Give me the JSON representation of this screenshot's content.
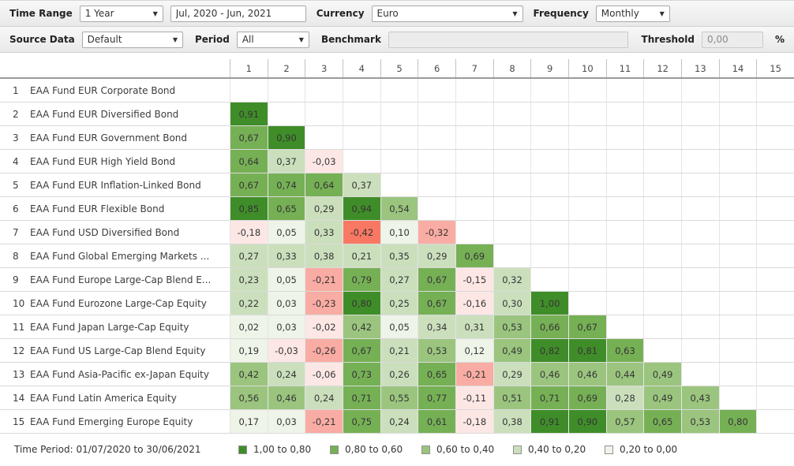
{
  "toolbar1": {
    "time_range_label": "Time Range",
    "time_range_value": "1 Year",
    "date_range_value": "Jul, 2020 - Jun, 2021",
    "currency_label": "Currency",
    "currency_value": "Euro",
    "frequency_label": "Frequency",
    "frequency_value": "Monthly"
  },
  "toolbar2": {
    "source_data_label": "Source Data",
    "source_data_value": "Default",
    "period_label": "Period",
    "period_value": "All",
    "benchmark_label": "Benchmark",
    "benchmark_value": "",
    "threshold_label": "Threshold",
    "threshold_value": "0,00",
    "percent_label": "%"
  },
  "colors": {
    "bands": {
      "d": "#3f8d29",
      "m": "#76b055",
      "ml": "#9bc57e",
      "l": "#cbdfbc",
      "vl": "#eef4e8",
      "vp": "#fce7e5",
      "sp": "#f9aca3",
      "r": "#f87863"
    }
  },
  "matrix": {
    "column_headers": [
      "1",
      "2",
      "3",
      "4",
      "5",
      "6",
      "7",
      "8",
      "9",
      "10",
      "11",
      "12",
      "13",
      "14",
      "15"
    ],
    "rows": [
      {
        "num": "1",
        "name": "EAA Fund EUR Corporate Bond",
        "values": []
      },
      {
        "num": "2",
        "name": "EAA Fund EUR Diversified Bond",
        "values": [
          {
            "v": "0,91",
            "b": "d"
          }
        ]
      },
      {
        "num": "3",
        "name": "EAA Fund EUR Government Bond",
        "values": [
          {
            "v": "0,67",
            "b": "m"
          },
          {
            "v": "0,90",
            "b": "d"
          }
        ]
      },
      {
        "num": "4",
        "name": "EAA Fund EUR High Yield Bond",
        "values": [
          {
            "v": "0,64",
            "b": "m"
          },
          {
            "v": "0,37",
            "b": "l"
          },
          {
            "v": "-0,03",
            "b": "vp"
          }
        ]
      },
      {
        "num": "5",
        "name": "EAA Fund EUR Inflation-Linked Bond",
        "values": [
          {
            "v": "0,67",
            "b": "m"
          },
          {
            "v": "0,74",
            "b": "m"
          },
          {
            "v": "0,64",
            "b": "m"
          },
          {
            "v": "0,37",
            "b": "l"
          }
        ]
      },
      {
        "num": "6",
        "name": "EAA Fund EUR Flexible Bond",
        "values": [
          {
            "v": "0,85",
            "b": "d"
          },
          {
            "v": "0,65",
            "b": "m"
          },
          {
            "v": "0,29",
            "b": "l"
          },
          {
            "v": "0,94",
            "b": "d"
          },
          {
            "v": "0,54",
            "b": "ml"
          }
        ]
      },
      {
        "num": "7",
        "name": "EAA Fund USD Diversified Bond",
        "values": [
          {
            "v": "-0,18",
            "b": "vp"
          },
          {
            "v": "0,05",
            "b": "vl"
          },
          {
            "v": "0,33",
            "b": "l"
          },
          {
            "v": "-0,42",
            "b": "r"
          },
          {
            "v": "0,10",
            "b": "vl"
          },
          {
            "v": "-0,32",
            "b": "sp"
          }
        ]
      },
      {
        "num": "8",
        "name": "EAA Fund Global Emerging Markets ...",
        "values": [
          {
            "v": "0,27",
            "b": "l"
          },
          {
            "v": "0,33",
            "b": "l"
          },
          {
            "v": "0,38",
            "b": "l"
          },
          {
            "v": "0,21",
            "b": "l"
          },
          {
            "v": "0,35",
            "b": "l"
          },
          {
            "v": "0,29",
            "b": "l"
          },
          {
            "v": "0,69",
            "b": "m"
          }
        ]
      },
      {
        "num": "9",
        "name": "EAA Fund Europe Large-Cap Blend E...",
        "values": [
          {
            "v": "0,23",
            "b": "l"
          },
          {
            "v": "0,05",
            "b": "vl"
          },
          {
            "v": "-0,21",
            "b": "sp"
          },
          {
            "v": "0,79",
            "b": "m"
          },
          {
            "v": "0,27",
            "b": "l"
          },
          {
            "v": "0,67",
            "b": "m"
          },
          {
            "v": "-0,15",
            "b": "vp"
          },
          {
            "v": "0,32",
            "b": "l"
          }
        ]
      },
      {
        "num": "10",
        "name": "EAA Fund Eurozone Large-Cap Equity",
        "values": [
          {
            "v": "0,22",
            "b": "l"
          },
          {
            "v": "0,03",
            "b": "vl"
          },
          {
            "v": "-0,23",
            "b": "sp"
          },
          {
            "v": "0,80",
            "b": "d"
          },
          {
            "v": "0,25",
            "b": "l"
          },
          {
            "v": "0,67",
            "b": "m"
          },
          {
            "v": "-0,16",
            "b": "vp"
          },
          {
            "v": "0,30",
            "b": "l"
          },
          {
            "v": "1,00",
            "b": "d"
          }
        ]
      },
      {
        "num": "11",
        "name": "EAA Fund Japan Large-Cap Equity",
        "values": [
          {
            "v": "0,02",
            "b": "vl"
          },
          {
            "v": "0,03",
            "b": "vl"
          },
          {
            "v": "-0,02",
            "b": "vp"
          },
          {
            "v": "0,42",
            "b": "ml"
          },
          {
            "v": "0,05",
            "b": "vl"
          },
          {
            "v": "0,34",
            "b": "l"
          },
          {
            "v": "0,31",
            "b": "l"
          },
          {
            "v": "0,53",
            "b": "ml"
          },
          {
            "v": "0,66",
            "b": "m"
          },
          {
            "v": "0,67",
            "b": "m"
          }
        ]
      },
      {
        "num": "12",
        "name": "EAA Fund US Large-Cap Blend Equity",
        "values": [
          {
            "v": "0,19",
            "b": "vl"
          },
          {
            "v": "-0,03",
            "b": "vp"
          },
          {
            "v": "-0,26",
            "b": "sp"
          },
          {
            "v": "0,67",
            "b": "m"
          },
          {
            "v": "0,21",
            "b": "l"
          },
          {
            "v": "0,53",
            "b": "ml"
          },
          {
            "v": "0,12",
            "b": "vl"
          },
          {
            "v": "0,49",
            "b": "ml"
          },
          {
            "v": "0,82",
            "b": "d"
          },
          {
            "v": "0,81",
            "b": "d"
          },
          {
            "v": "0,63",
            "b": "m"
          }
        ]
      },
      {
        "num": "13",
        "name": "EAA Fund Asia-Pacific ex-Japan Equity",
        "values": [
          {
            "v": "0,42",
            "b": "ml"
          },
          {
            "v": "0,24",
            "b": "l"
          },
          {
            "v": "-0,06",
            "b": "vp"
          },
          {
            "v": "0,73",
            "b": "m"
          },
          {
            "v": "0,26",
            "b": "l"
          },
          {
            "v": "0,65",
            "b": "m"
          },
          {
            "v": "-0,21",
            "b": "sp"
          },
          {
            "v": "0,29",
            "b": "l"
          },
          {
            "v": "0,46",
            "b": "ml"
          },
          {
            "v": "0,46",
            "b": "ml"
          },
          {
            "v": "0,44",
            "b": "ml"
          },
          {
            "v": "0,49",
            "b": "ml"
          }
        ]
      },
      {
        "num": "14",
        "name": "EAA Fund Latin America Equity",
        "values": [
          {
            "v": "0,56",
            "b": "ml"
          },
          {
            "v": "0,46",
            "b": "ml"
          },
          {
            "v": "0,24",
            "b": "l"
          },
          {
            "v": "0,71",
            "b": "m"
          },
          {
            "v": "0,55",
            "b": "ml"
          },
          {
            "v": "0,77",
            "b": "m"
          },
          {
            "v": "-0,11",
            "b": "vp"
          },
          {
            "v": "0,51",
            "b": "ml"
          },
          {
            "v": "0,71",
            "b": "m"
          },
          {
            "v": "0,69",
            "b": "m"
          },
          {
            "v": "0,28",
            "b": "l"
          },
          {
            "v": "0,49",
            "b": "ml"
          },
          {
            "v": "0,43",
            "b": "ml"
          }
        ]
      },
      {
        "num": "15",
        "name": "EAA Fund Emerging Europe Equity",
        "values": [
          {
            "v": "0,17",
            "b": "vl"
          },
          {
            "v": "0,03",
            "b": "vl"
          },
          {
            "v": "-0,21",
            "b": "sp"
          },
          {
            "v": "0,75",
            "b": "m"
          },
          {
            "v": "0,24",
            "b": "l"
          },
          {
            "v": "0,61",
            "b": "m"
          },
          {
            "v": "-0,18",
            "b": "vp"
          },
          {
            "v": "0,38",
            "b": "l"
          },
          {
            "v": "0,91",
            "b": "d"
          },
          {
            "v": "0,90",
            "b": "d"
          },
          {
            "v": "0,57",
            "b": "ml"
          },
          {
            "v": "0,65",
            "b": "m"
          },
          {
            "v": "0,53",
            "b": "ml"
          },
          {
            "v": "0,80",
            "b": "m"
          }
        ]
      }
    ]
  },
  "chart_data": {
    "type": "heatmap",
    "title": "Correlation matrix",
    "row_labels": [
      "EAA Fund EUR Corporate Bond",
      "EAA Fund EUR Diversified Bond",
      "EAA Fund EUR Government Bond",
      "EAA Fund EUR High Yield Bond",
      "EAA Fund EUR Inflation-Linked Bond",
      "EAA Fund EUR Flexible Bond",
      "EAA Fund USD Diversified Bond",
      "EAA Fund Global Emerging Markets ...",
      "EAA Fund Europe Large-Cap Blend E...",
      "EAA Fund Eurozone Large-Cap Equity",
      "EAA Fund Japan Large-Cap Equity",
      "EAA Fund US Large-Cap Blend Equity",
      "EAA Fund Asia-Pacific ex-Japan Equity",
      "EAA Fund Latin America Equity",
      "EAA Fund Emerging Europe Equity"
    ],
    "column_labels": [
      "1",
      "2",
      "3",
      "4",
      "5",
      "6",
      "7",
      "8",
      "9",
      "10",
      "11",
      "12",
      "13",
      "14",
      "15"
    ],
    "values_lower_triangle": [
      [],
      [
        0.91
      ],
      [
        0.67,
        0.9
      ],
      [
        0.64,
        0.37,
        -0.03
      ],
      [
        0.67,
        0.74,
        0.64,
        0.37
      ],
      [
        0.85,
        0.65,
        0.29,
        0.94,
        0.54
      ],
      [
        -0.18,
        0.05,
        0.33,
        -0.42,
        0.1,
        -0.32
      ],
      [
        0.27,
        0.33,
        0.38,
        0.21,
        0.35,
        0.29,
        0.69
      ],
      [
        0.23,
        0.05,
        -0.21,
        0.79,
        0.27,
        0.67,
        -0.15,
        0.32
      ],
      [
        0.22,
        0.03,
        -0.23,
        0.8,
        0.25,
        0.67,
        -0.16,
        0.3,
        1.0
      ],
      [
        0.02,
        0.03,
        -0.02,
        0.42,
        0.05,
        0.34,
        0.31,
        0.53,
        0.66,
        0.67
      ],
      [
        0.19,
        -0.03,
        -0.26,
        0.67,
        0.21,
        0.53,
        0.12,
        0.49,
        0.82,
        0.81,
        0.63
      ],
      [
        0.42,
        0.24,
        -0.06,
        0.73,
        0.26,
        0.65,
        -0.21,
        0.29,
        0.46,
        0.46,
        0.44,
        0.49
      ],
      [
        0.56,
        0.46,
        0.24,
        0.71,
        0.55,
        0.77,
        -0.11,
        0.51,
        0.71,
        0.69,
        0.28,
        0.49,
        0.43
      ],
      [
        0.17,
        0.03,
        -0.21,
        0.75,
        0.24,
        0.61,
        -0.18,
        0.38,
        0.91,
        0.9,
        0.57,
        0.65,
        0.53,
        0.8
      ]
    ]
  },
  "footer": {
    "time_period": "Time Period: 01/07/2020 to 30/06/2021",
    "legend": [
      {
        "label": "1,00 to 0,80",
        "band": "d"
      },
      {
        "label": "0,80 to 0,60",
        "band": "m"
      },
      {
        "label": "0,60 to 0,40",
        "band": "ml"
      },
      {
        "label": "0,40 to 0,20",
        "band": "l"
      },
      {
        "label": "0,20 to 0,00",
        "band": "vl"
      }
    ]
  }
}
